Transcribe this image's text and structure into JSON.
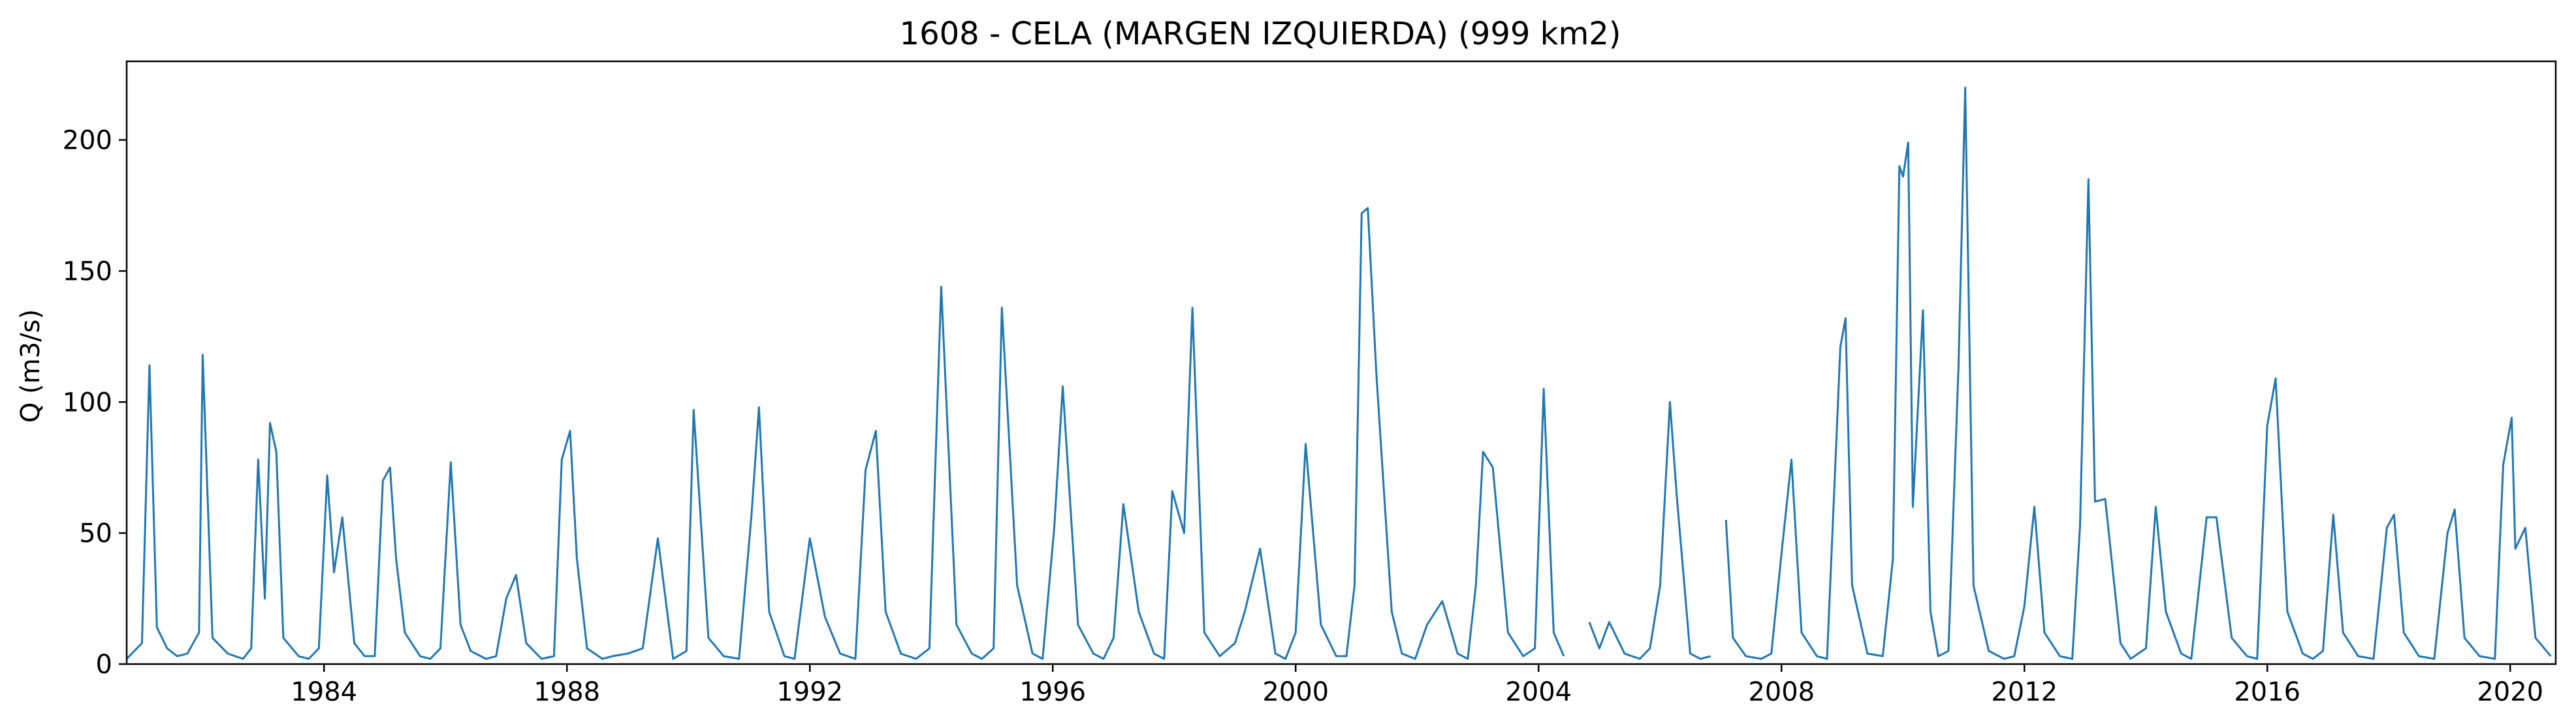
{
  "chart_data": {
    "type": "line",
    "title": "1608 - CELA (MARGEN IZQUIERDA) (999 km2)",
    "xlabel": "",
    "ylabel": "Q (m3/s)",
    "x_ticks": [
      "1984",
      "1988",
      "1992",
      "1996",
      "2000",
      "2004",
      "2008",
      "2012",
      "2016",
      "2020"
    ],
    "y_ticks": [
      "0",
      "50",
      "100",
      "150",
      "200"
    ],
    "xlim": [
      "1980-10-01",
      "2020-10-01"
    ],
    "ylim": [
      0,
      230
    ],
    "grid": false,
    "legend": "none",
    "line_color": "#1f77b4",
    "series": [
      {
        "x": [
          "1980-10-01",
          "1981-01-01",
          "1981-02-15",
          "1981-04-01",
          "1981-06-01",
          "1981-08-01",
          "1981-10-01",
          "1981-12-10",
          "1982-01-01",
          "1982-03-01",
          "1982-06-01",
          "1982-09-01",
          "1982-10-20",
          "1982-12-01",
          "1983-01-10",
          "1983-02-10",
          "1983-03-20",
          "1983-05-01",
          "1983-08-01",
          "1983-10-01",
          "1983-12-01",
          "1984-01-20",
          "1984-03-01",
          "1984-04-20",
          "1984-07-01",
          "1984-09-01",
          "1984-11-01",
          "1984-12-20",
          "1985-02-01",
          "1985-03-10",
          "1985-05-01",
          "1985-08-01",
          "1985-10-01",
          "1985-12-01",
          "1986-02-01",
          "1986-04-01",
          "1986-06-01",
          "1986-09-01",
          "1986-11-01",
          "1987-01-01",
          "1987-03-01",
          "1987-05-01",
          "1987-08-01",
          "1987-10-15",
          "1987-12-01",
          "1988-01-20",
          "1988-03-01",
          "1988-05-01",
          "1988-08-01",
          "1988-10-01",
          "1989-01-01",
          "1989-04-01",
          "1989-07-01",
          "1989-10-01",
          "1989-12-20",
          "1990-02-01",
          "1990-05-01",
          "1990-08-01",
          "1990-11-01",
          "1991-01-15",
          "1991-03-01",
          "1991-05-01",
          "1991-08-01",
          "1991-10-01",
          "1992-01-01",
          "1992-04-01",
          "1992-07-01",
          "1992-10-01",
          "1992-12-01",
          "1993-02-01",
          "1993-04-01",
          "1993-07-01",
          "1993-10-01",
          "1993-12-20",
          "1994-03-01",
          "1994-06-01",
          "1994-09-01",
          "1994-11-01",
          "1995-01-10",
          "1995-03-01",
          "1995-06-01",
          "1995-09-01",
          "1995-11-01",
          "1996-01-10",
          "1996-03-01",
          "1996-06-01",
          "1996-09-01",
          "1996-11-01",
          "1997-01-01",
          "1997-03-01",
          "1997-06-01",
          "1997-09-01",
          "1997-11-01",
          "1997-12-20",
          "1998-03-01",
          "1998-04-20",
          "1998-07-01",
          "1998-10-01",
          "1999-01-01",
          "1999-03-01",
          "1999-06-01",
          "1999-09-01",
          "1999-11-01",
          "2000-01-01",
          "2000-03-01",
          "2000-06-01",
          "2000-09-01",
          "2000-11-01",
          "2000-12-20",
          "2001-01-10",
          "2001-02-01",
          "2001-03-10",
          "2001-05-01",
          "2001-08-01",
          "2001-10-01",
          "2001-12-20",
          "2002-03-01",
          "2002-06-01",
          "2002-09-01",
          "2002-11-01",
          "2002-12-20",
          "2003-02-01",
          "2003-04-01",
          "2003-07-01",
          "2003-10-01",
          "2003-12-10",
          "2004-02-01",
          "2004-04-01",
          "2004-06-01"
        ],
        "y": [
          2,
          8,
          114,
          14,
          6,
          3,
          4,
          12,
          118,
          10,
          4,
          2,
          6,
          78,
          25,
          92,
          81,
          10,
          3,
          2,
          6,
          72,
          35,
          56,
          8,
          3,
          3,
          70,
          75,
          40,
          12,
          3,
          2,
          6,
          77,
          15,
          5,
          2,
          3,
          25,
          34,
          8,
          2,
          3,
          78,
          89,
          40,
          6,
          2,
          3,
          4,
          6,
          48,
          2,
          5,
          97,
          10,
          3,
          2,
          57,
          98,
          20,
          3,
          2,
          48,
          18,
          4,
          2,
          74,
          89,
          20,
          4,
          2,
          6,
          144,
          15,
          4,
          2,
          6,
          136,
          30,
          4,
          2,
          52,
          106,
          15,
          4,
          2,
          10,
          61,
          20,
          4,
          2,
          66,
          50,
          136,
          12,
          3,
          8,
          20,
          44,
          4,
          2,
          12,
          84,
          15,
          3,
          3,
          30,
          98,
          172,
          174,
          110,
          20,
          4,
          2,
          15,
          24,
          4,
          2,
          30,
          81,
          75,
          12,
          3,
          6,
          105,
          12,
          3
        ]
      },
      {
        "x": [
          "2004-11-01",
          "2005-01-01",
          "2005-03-01",
          "2005-06-01",
          "2005-09-01",
          "2005-11-01",
          "2006-01-01",
          "2006-03-01",
          "2006-04-10",
          "2006-07-01",
          "2006-09-01",
          "2006-11-01"
        ],
        "y": [
          16,
          6,
          16,
          4,
          2,
          6,
          30,
          100,
          65,
          4,
          2,
          3
        ]
      },
      {
        "x": [
          "2007-02-01",
          "2007-03-15",
          "2007-06-01",
          "2007-09-01",
          "2007-11-01",
          "2008-01-01",
          "2008-03-01",
          "2008-05-01",
          "2008-08-01",
          "2008-10-01",
          "2008-12-20",
          "2009-01-20",
          "2009-03-01",
          "2009-06-01",
          "2009-09-01",
          "2009-11-01",
          "2009-12-10",
          "2010-01-01",
          "2010-02-01",
          "2010-03-01",
          "2010-05-01",
          "2010-06-15",
          "2010-08-01",
          "2010-10-01",
          "2010-12-01",
          "2011-01-10",
          "2011-03-01",
          "2011-06-01",
          "2011-09-01",
          "2011-11-01",
          "2012-01-01",
          "2012-03-01",
          "2012-05-01",
          "2012-08-01",
          "2012-10-15",
          "2012-12-01",
          "2013-01-20",
          "2013-03-01",
          "2013-05-01",
          "2013-08-01",
          "2013-10-01",
          "2014-01-01",
          "2014-03-01",
          "2014-05-01",
          "2014-08-01",
          "2014-10-01",
          "2015-01-01",
          "2015-03-01",
          "2015-06-01",
          "2015-09-01",
          "2015-11-01",
          "2016-01-01",
          "2016-02-20",
          "2016-05-01",
          "2016-08-01",
          "2016-10-01",
          "2016-12-01",
          "2017-02-01",
          "2017-04-01",
          "2017-07-01",
          "2017-10-01",
          "2017-12-20",
          "2018-02-01",
          "2018-04-01",
          "2018-07-01",
          "2018-10-01",
          "2018-12-20",
          "2019-02-01",
          "2019-04-01",
          "2019-07-01",
          "2019-10-01",
          "2019-11-20",
          "2020-01-10",
          "2020-02-01",
          "2020-04-01",
          "2020-06-01",
          "2020-09-01"
        ],
        "y": [
          55,
          10,
          3,
          2,
          4,
          42,
          78,
          12,
          3,
          2,
          121,
          132,
          30,
          4,
          3,
          40,
          190,
          186,
          199,
          60,
          135,
          20,
          3,
          5,
          114,
          220,
          30,
          5,
          2,
          3,
          22,
          60,
          12,
          3,
          2,
          53,
          185,
          62,
          63,
          8,
          2,
          6,
          60,
          20,
          4,
          2,
          56,
          56,
          10,
          3,
          2,
          91,
          109,
          20,
          4,
          2,
          5,
          57,
          12,
          3,
          2,
          52,
          57,
          12,
          3,
          2,
          50,
          59,
          10,
          3,
          2,
          76,
          94,
          44,
          52,
          10,
          3
        ]
      }
    ]
  }
}
